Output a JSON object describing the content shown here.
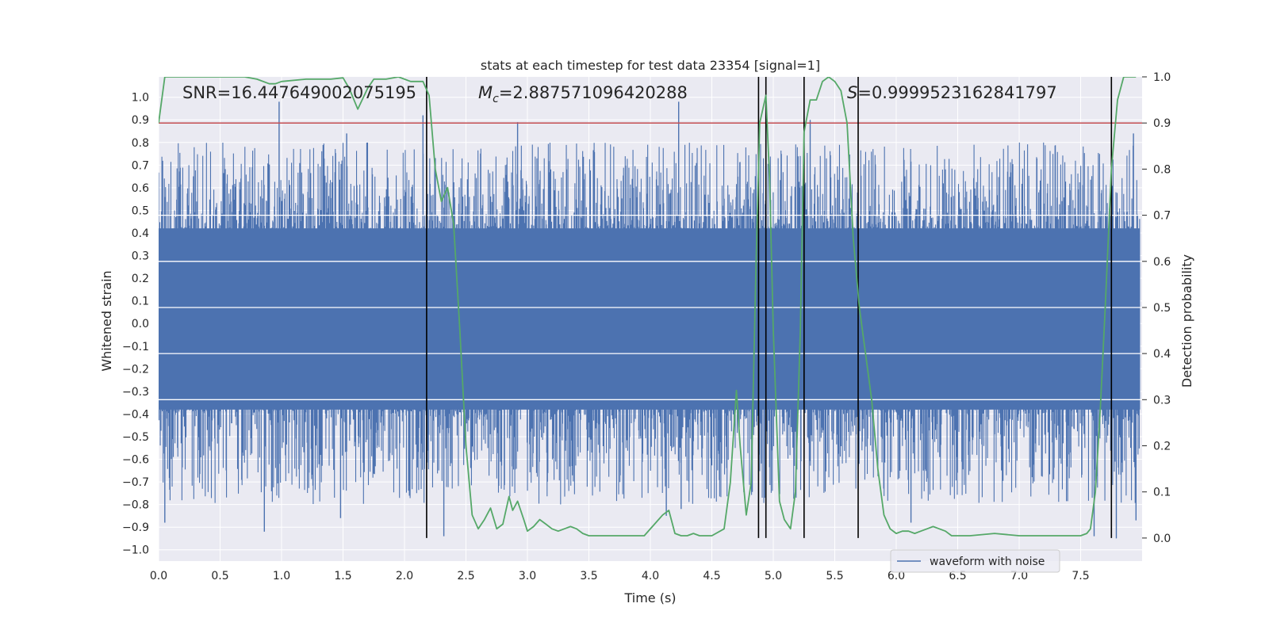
{
  "chart_data": {
    "type": "line",
    "title": "stats at each timestep for test data 23354 [signal=1]",
    "xlabel": "Time (s)",
    "ylabel": "Whitened strain",
    "ylabel_right": "Detection probability",
    "xlim": [
      0.0,
      8.0
    ],
    "ylim": [
      -1.05,
      1.09
    ],
    "ylim_right": [
      -0.05,
      1.0
    ],
    "x_ticks": [
      0.0,
      0.5,
      1.0,
      1.5,
      2.0,
      2.5,
      3.0,
      3.5,
      4.0,
      4.5,
      5.0,
      5.5,
      6.0,
      6.5,
      7.0,
      7.5
    ],
    "x_tick_labels": [
      "0.0",
      "0.5",
      "1.0",
      "1.5",
      "2.0",
      "2.5",
      "3.0",
      "3.5",
      "4.0",
      "4.5",
      "5.0",
      "5.5",
      "6.0",
      "6.5",
      "7.0",
      "7.5"
    ],
    "y_ticks": [
      -1.0,
      -0.9,
      -0.8,
      -0.7,
      -0.6,
      -0.5,
      -0.4,
      -0.3,
      -0.2,
      -0.1,
      0.0,
      0.1,
      0.2,
      0.3,
      0.4,
      0.5,
      0.6,
      0.7,
      0.8,
      0.9,
      1.0
    ],
    "y_tick_labels": [
      "−1.0",
      "−0.9",
      "−0.8",
      "−0.7",
      "−0.6",
      "−0.5",
      "−0.4",
      "−0.3",
      "−0.2",
      "−0.1",
      "0.0",
      "0.1",
      "0.2",
      "0.3",
      "0.4",
      "0.5",
      "0.6",
      "0.7",
      "0.8",
      "0.9",
      "1.0"
    ],
    "y_right_ticks": [
      0.0,
      0.1,
      0.2,
      0.3,
      0.4,
      0.5,
      0.6,
      0.7,
      0.8,
      0.9,
      1.0
    ],
    "y_right_tick_labels": [
      "0.0",
      "0.1",
      "0.2",
      "0.3",
      "0.4",
      "0.5",
      "0.6",
      "0.7",
      "0.8",
      "0.9",
      "1.0"
    ],
    "annotations": {
      "snr": "SNR=16.447649002075195",
      "mc_symbol": "M",
      "mc_subscript": "c",
      "mc_value": "=2.887571096420288",
      "s_symbol": "S",
      "s_value": "=0.9999523162841797"
    },
    "legend": {
      "label": "waveform with noise",
      "placement": "lower-right"
    },
    "threshold": {
      "value": 0.9,
      "axis": "right",
      "color": "#c44e52"
    },
    "vlines": [
      2.18,
      4.88,
      4.94,
      5.25,
      5.69,
      7.75
    ],
    "waveform": {
      "label": "waveform with noise",
      "color": "#4c72b0",
      "t_start": 0.0,
      "t_end": 7.98,
      "dense_envelope": [
        -0.38,
        0.42
      ],
      "typical_amplitude": [
        -0.58,
        0.62
      ],
      "spike_peaks": [
        [
          0.98,
          0.98
        ],
        [
          1.53,
          0.84
        ],
        [
          2.15,
          0.92
        ],
        [
          2.92,
          0.89
        ],
        [
          4.23,
          0.98
        ],
        [
          5.3,
          0.9
        ],
        [
          7.93,
          0.84
        ],
        [
          0.05,
          -0.88
        ],
        [
          0.86,
          -0.92
        ],
        [
          1.48,
          -0.86
        ],
        [
          2.32,
          -0.94
        ],
        [
          4.13,
          -0.85
        ],
        [
          4.25,
          -0.82
        ],
        [
          6.12,
          -0.88
        ],
        [
          7.61,
          -0.94
        ],
        [
          7.79,
          -0.95
        ],
        [
          7.95,
          -0.87
        ]
      ]
    },
    "series": [
      {
        "name": "detection probability",
        "axis": "right",
        "color": "#55a868",
        "x": [
          0.0,
          0.05,
          0.1,
          0.3,
          0.5,
          0.7,
          0.8,
          0.9,
          0.95,
          1.0,
          1.2,
          1.4,
          1.5,
          1.55,
          1.62,
          1.7,
          1.75,
          1.85,
          1.95,
          2.05,
          2.15,
          2.2,
          2.25,
          2.3,
          2.35,
          2.4,
          2.45,
          2.5,
          2.55,
          2.6,
          2.65,
          2.7,
          2.75,
          2.8,
          2.85,
          2.88,
          2.92,
          2.97,
          3.0,
          3.05,
          3.1,
          3.15,
          3.2,
          3.25,
          3.3,
          3.35,
          3.4,
          3.45,
          3.5,
          3.6,
          3.8,
          3.95,
          4.05,
          4.1,
          4.15,
          4.2,
          4.25,
          4.3,
          4.35,
          4.4,
          4.5,
          4.6,
          4.65,
          4.7,
          4.73,
          4.78,
          4.82,
          4.86,
          4.89,
          4.94,
          4.97,
          5.0,
          5.05,
          5.09,
          5.14,
          5.18,
          5.22,
          5.25,
          5.3,
          5.35,
          5.4,
          5.45,
          5.5,
          5.55,
          5.6,
          5.65,
          5.7,
          5.75,
          5.8,
          5.85,
          5.9,
          5.95,
          6.0,
          6.05,
          6.1,
          6.15,
          6.2,
          6.25,
          6.3,
          6.35,
          6.4,
          6.45,
          6.5,
          6.6,
          6.8,
          7.0,
          7.1,
          7.2,
          7.3,
          7.4,
          7.5,
          7.55,
          7.58,
          7.62,
          7.66,
          7.7,
          7.75,
          7.8,
          7.85,
          7.9,
          7.95
        ],
        "y": [
          0.9,
          1.0,
          1.0,
          1.0,
          1.0,
          1.0,
          0.995,
          0.985,
          0.985,
          0.99,
          0.995,
          0.995,
          0.998,
          0.975,
          0.93,
          0.975,
          0.995,
          0.995,
          1.0,
          0.99,
          0.99,
          0.96,
          0.8,
          0.73,
          0.76,
          0.68,
          0.45,
          0.2,
          0.05,
          0.02,
          0.04,
          0.065,
          0.02,
          0.03,
          0.09,
          0.06,
          0.08,
          0.04,
          0.015,
          0.025,
          0.04,
          0.03,
          0.02,
          0.015,
          0.02,
          0.025,
          0.02,
          0.01,
          0.005,
          0.005,
          0.005,
          0.005,
          0.035,
          0.05,
          0.06,
          0.01,
          0.005,
          0.005,
          0.01,
          0.005,
          0.005,
          0.02,
          0.12,
          0.32,
          0.2,
          0.05,
          0.12,
          0.6,
          0.9,
          0.96,
          0.78,
          0.45,
          0.08,
          0.04,
          0.02,
          0.1,
          0.45,
          0.88,
          0.95,
          0.95,
          0.99,
          1.0,
          0.99,
          0.97,
          0.9,
          0.65,
          0.5,
          0.4,
          0.3,
          0.15,
          0.05,
          0.02,
          0.01,
          0.015,
          0.015,
          0.01,
          0.015,
          0.02,
          0.025,
          0.02,
          0.015,
          0.005,
          0.005,
          0.005,
          0.01,
          0.005,
          0.005,
          0.005,
          0.005,
          0.005,
          0.005,
          0.01,
          0.02,
          0.1,
          0.28,
          0.5,
          0.8,
          0.95,
          1.0,
          1.0,
          1.0
        ]
      }
    ]
  }
}
